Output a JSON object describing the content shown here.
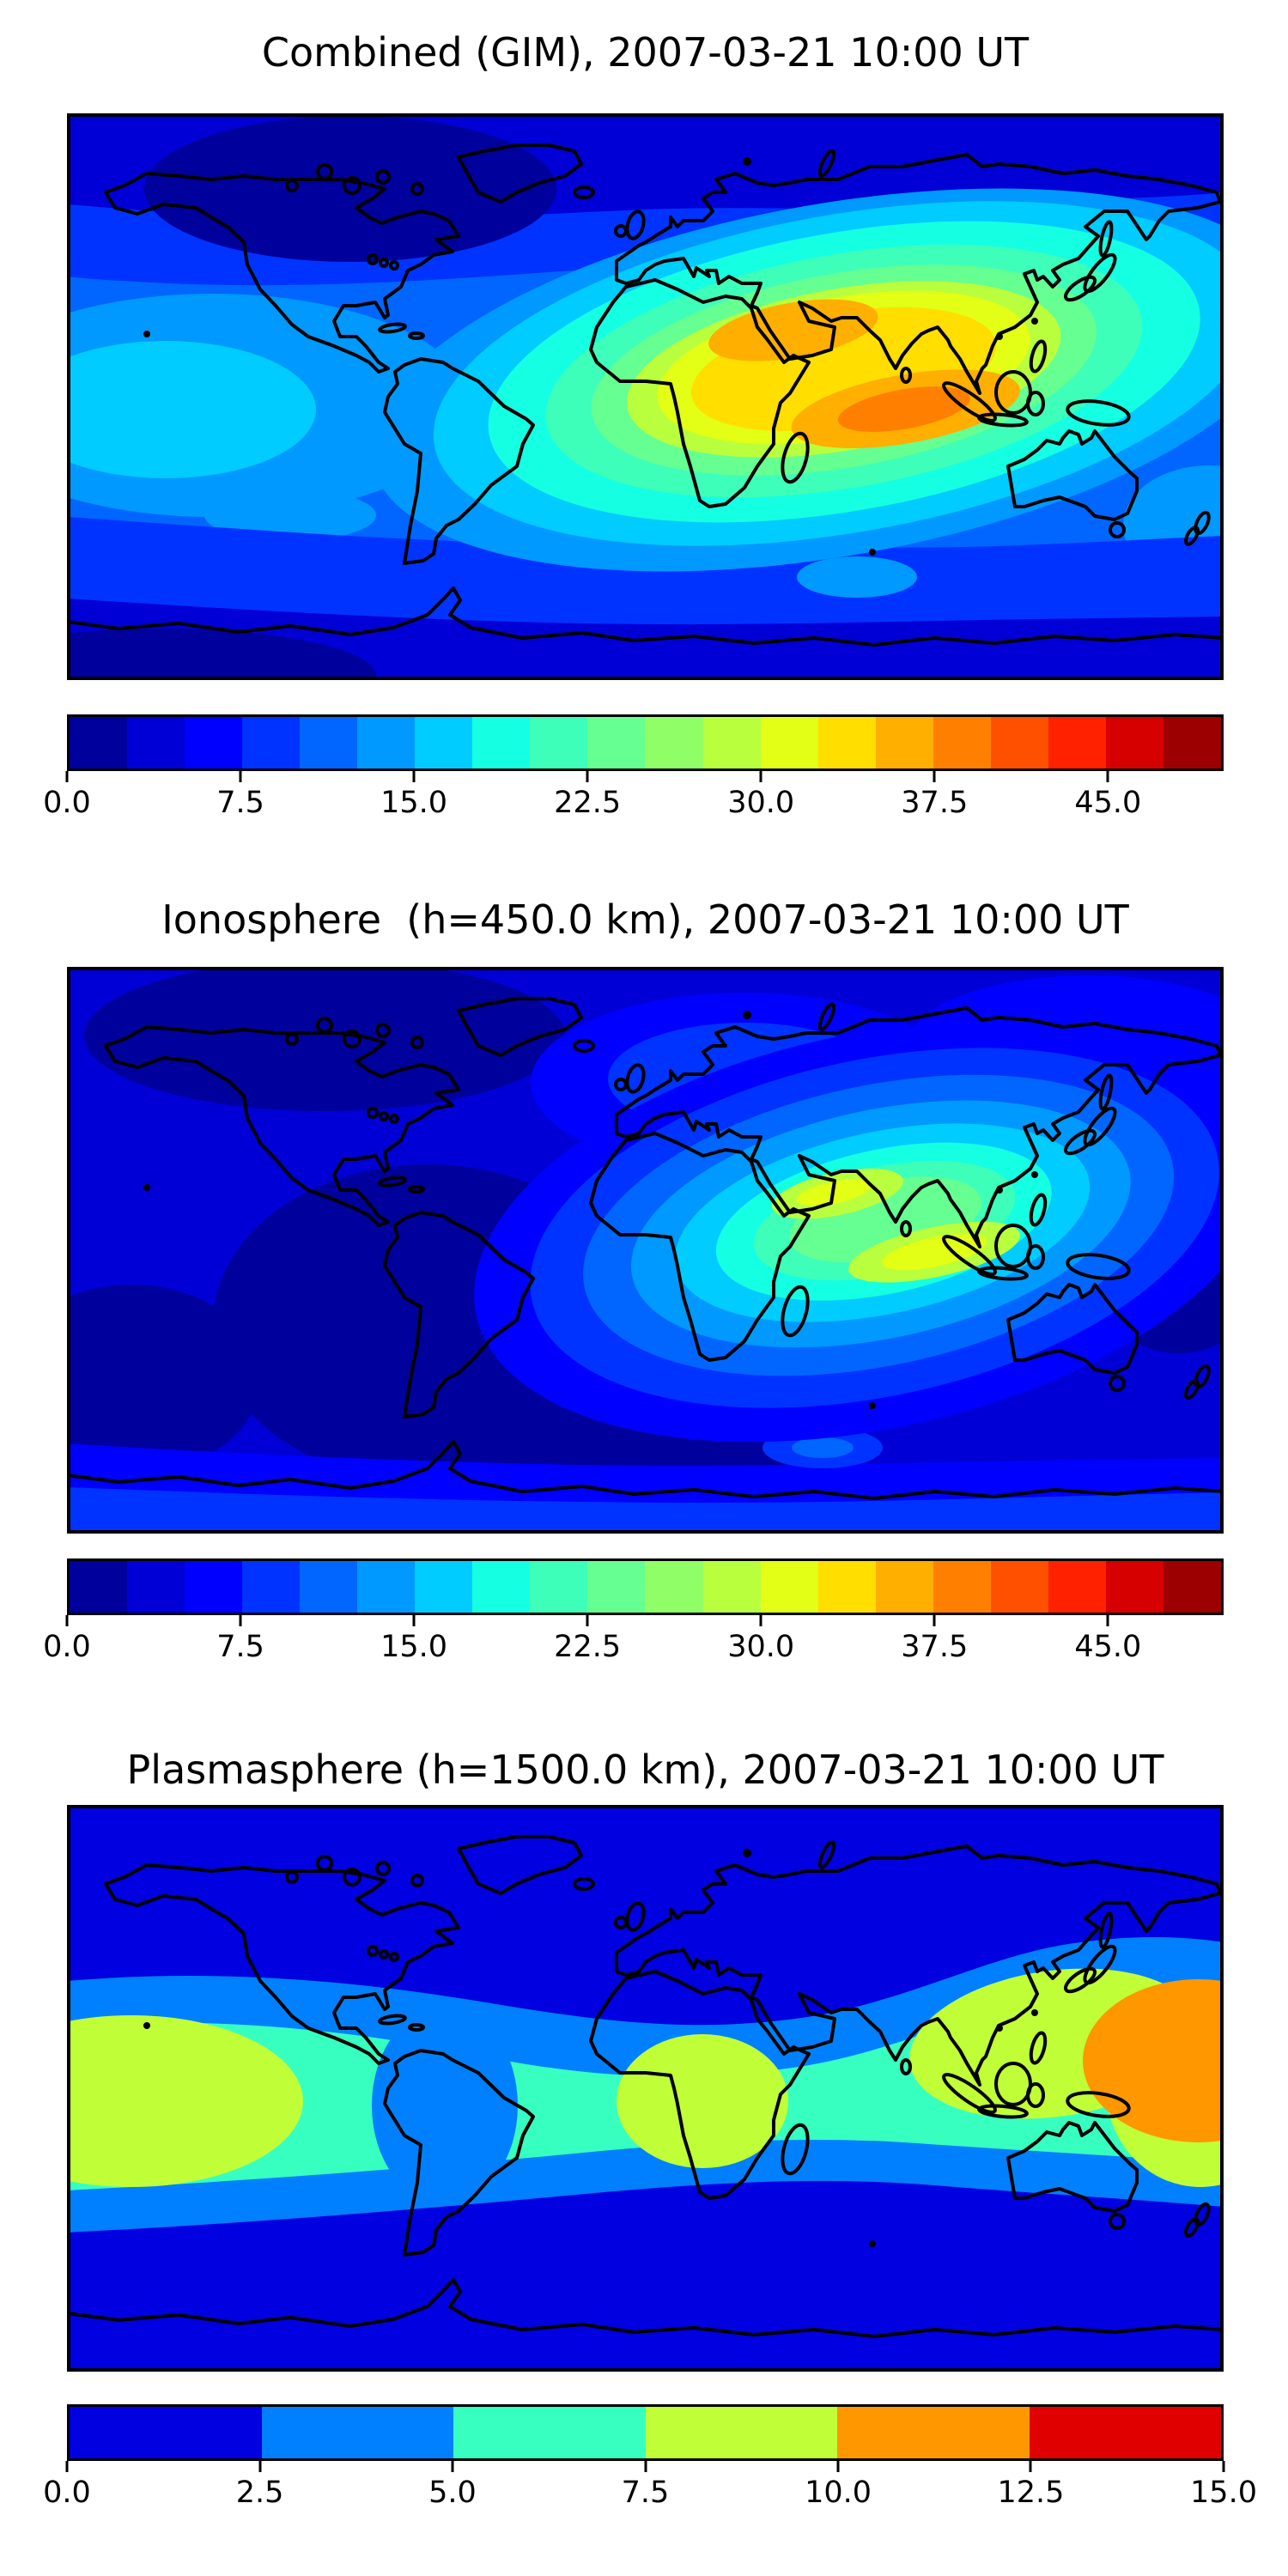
{
  "figure": {
    "background": "#ffffff",
    "panels": [
      {
        "id": "combined-gim",
        "title": "Combined (GIM), 2007-03-21 10:00 UT",
        "colorbar": {
          "min": 0.0,
          "max": 50.0,
          "step": 2.5,
          "colors": [
            "#00009D",
            "#0000D6",
            "#0000FF",
            "#0033FF",
            "#0066FF",
            "#0099FF",
            "#00CCFF",
            "#15FFE2",
            "#3EFFB9",
            "#66FF91",
            "#90FF67",
            "#B9FF3E",
            "#E2FF15",
            "#FFDE00",
            "#FFAF00",
            "#FF8000",
            "#FF5000",
            "#FF2100",
            "#D60000",
            "#9D0000"
          ],
          "ticks": [
            {
              "label": "0.0",
              "pos": 0.0
            },
            {
              "label": "7.5",
              "pos": 0.15
            },
            {
              "label": "15.0",
              "pos": 0.3
            },
            {
              "label": "22.5",
              "pos": 0.45
            },
            {
              "label": "30.0",
              "pos": 0.6
            },
            {
              "label": "37.5",
              "pos": 0.75
            },
            {
              "label": "45.0",
              "pos": 0.9
            }
          ]
        }
      },
      {
        "id": "ionosphere",
        "title": "Ionosphere  (h=450.0 km), 2007-03-21 10:00 UT",
        "colorbar": {
          "min": 0.0,
          "max": 50.0,
          "step": 2.5,
          "colors": [
            "#00009D",
            "#0000D6",
            "#0000FF",
            "#0033FF",
            "#0066FF",
            "#0099FF",
            "#00CCFF",
            "#15FFE2",
            "#3EFFB9",
            "#66FF91",
            "#90FF67",
            "#B9FF3E",
            "#E2FF15",
            "#FFDE00",
            "#FFAF00",
            "#FF8000",
            "#FF5000",
            "#FF2100",
            "#D60000",
            "#9D0000"
          ],
          "ticks": [
            {
              "label": "0.0",
              "pos": 0.0
            },
            {
              "label": "7.5",
              "pos": 0.15
            },
            {
              "label": "15.0",
              "pos": 0.3
            },
            {
              "label": "22.5",
              "pos": 0.45
            },
            {
              "label": "30.0",
              "pos": 0.6
            },
            {
              "label": "37.5",
              "pos": 0.75
            },
            {
              "label": "45.0",
              "pos": 0.9
            }
          ]
        }
      },
      {
        "id": "plasmasphere",
        "title": "Plasmasphere (h=1500.0 km), 2007-03-21 10:00 UT",
        "colorbar": {
          "min": 0.0,
          "max": 15.0,
          "step": 2.5,
          "colors": [
            "#0000E0",
            "#0080FF",
            "#37FFC0",
            "#C0FF37",
            "#FF9700",
            "#E00000"
          ],
          "ticks": [
            {
              "label": "0.0",
              "pos": 0.0
            },
            {
              "label": "2.5",
              "pos": 0.1667
            },
            {
              "label": "5.0",
              "pos": 0.3333
            },
            {
              "label": "7.5",
              "pos": 0.5
            },
            {
              "label": "10.0",
              "pos": 0.6667
            },
            {
              "label": "12.5",
              "pos": 0.8333
            },
            {
              "label": "15.0",
              "pos": 1.0
            }
          ]
        }
      }
    ]
  },
  "chart_data": [
    {
      "type": "filled_contour_map",
      "title": "Combined (GIM), 2007-03-21 10:00 UT",
      "layer": "Combined (GIM)",
      "datetime_label": "2007-03-21 10:00 UT",
      "projection": "equirectangular world map, lon -180..180, lat -90..90, black coastlines, no axis ticks",
      "colormap": "jet, 20 discrete filled-contour bands",
      "levels": {
        "min": 0.0,
        "max": 50.0,
        "step": 2.5
      },
      "colorbar_ticks": [
        0.0,
        7.5,
        15.0,
        22.5,
        30.0,
        37.5,
        45.0
      ],
      "colorbar_orientation": "horizontal, below map",
      "features": [
        {
          "region": "Indian Ocean core (~lon 60E-95E, lat ~5S-15S)",
          "value": "peak 40-45 (orange-red core)"
        },
        {
          "region": "Arabia / northern India (~lon 35E-75E, lat ~15N-30N)",
          "value": "secondary peak 35-40 (orange)"
        },
        {
          "region": "broad dayside enhancement Africa-Asia-Indian Ocean (~lon 0-140E, lat ~45N-40S)",
          "value": "15-35 nested cyan-green-yellow rings"
        },
        {
          "region": "equatorial central/east Pacific (left of map)",
          "value": "10-17.5 light blue/cyan"
        },
        {
          "region": "Canadian Arctic / high-latitude North America",
          "value": "minimum 0-5 (dark navy)"
        },
        {
          "region": "Antarctic coast and south polar corners",
          "value": "0-7.5 (navy/dark blue band)"
        }
      ]
    },
    {
      "type": "filled_contour_map",
      "title": "Ionosphere  (h=450.0 km), 2007-03-21 10:00 UT",
      "layer": "Ionosphere",
      "height_km": 450.0,
      "datetime_label": "2007-03-21 10:00 UT",
      "projection": "equirectangular world map, lon -180..180, lat -90..90, black coastlines, no axis ticks",
      "colormap": "jet, 20 discrete filled-contour bands",
      "levels": {
        "min": 0.0,
        "max": 50.0,
        "step": 2.5
      },
      "colorbar_ticks": [
        0.0,
        7.5,
        15.0,
        22.5,
        30.0,
        37.5,
        45.0
      ],
      "colorbar_orientation": "horizontal, below map",
      "features": [
        {
          "region": "south of India / central Indian Ocean (~lon 70E-100E, lat ~5S-12S)",
          "value": "peak 30-32.5 (yellow core)"
        },
        {
          "region": "Arabia / NW India (~lon 40E-70E, lat ~15N-28N)",
          "value": "27.5-30 (yellow-green core)"
        },
        {
          "region": "nested rings around Africa-Indian Ocean enhancement",
          "value": "5-27.5 cyan-teal-green"
        },
        {
          "region": "Americas, Atlantic and south-central ocean patches",
          "value": "minimum 0-5 (dark navy)"
        },
        {
          "region": "Europe, Siberia, southern band near Antarctica",
          "value": "5-10 (blue)"
        }
      ]
    },
    {
      "type": "filled_contour_map",
      "title": "Plasmasphere (h=1500.0 km), 2007-03-21 10:00 UT",
      "layer": "Plasmasphere",
      "height_km": 1500.0,
      "datetime_label": "2007-03-21 10:00 UT",
      "projection": "equirectangular world map, lon -180..180, lat -90..90, black coastlines, no axis ticks",
      "colormap": "jet, 6 discrete filled-contour bands",
      "levels": {
        "min": 0.0,
        "max": 15.0,
        "step": 2.5
      },
      "colorbar_ticks": [
        0.0,
        2.5,
        5.0,
        7.5,
        10.0,
        12.5,
        15.0
      ],
      "colorbar_orientation": "horizontal, below map",
      "features": [
        {
          "region": "polar caps / high latitudes (poleward of ~45N and ~40S)",
          "value": "0-2.5 (dark blue)"
        },
        {
          "region": "mid-latitude transition bands",
          "value": "2.5-5 (azure)"
        },
        {
          "region": "equatorial belt spanning all longitudes (~lat 35N-35S)",
          "value": "5-7.5 (turquoise)"
        },
        {
          "region": "central Pacific (left edge), Africa, East Asia blobs",
          "value": "7.5-10 (yellow-green)"
        },
        {
          "region": "western Pacific (~lon 135E-180E, lat ~30N-15S)",
          "value": "peak 10-12.5 (orange blob reaching right map edge)"
        },
        {
          "region": "NW South America dip",
          "value": "2.5-5 (azure depression in equatorial belt)"
        }
      ]
    }
  ]
}
